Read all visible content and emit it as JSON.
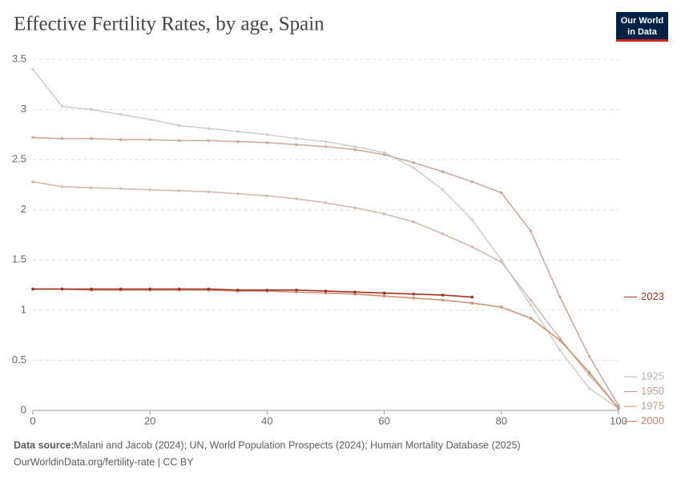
{
  "logo": [
    "Our World",
    "in Data"
  ],
  "chart_data": {
    "type": "line",
    "title": "Effective Fertility Rates, by age, Spain",
    "source_label": "Data source:",
    "source": "Malani and Jacob (2024); UN, World Population Prospects (2024); Human Mortality Database (2025)",
    "footer": "OurWorldinData.org/fertility-rate | CC BY",
    "x": [
      0,
      5,
      10,
      15,
      20,
      25,
      30,
      35,
      40,
      45,
      50,
      55,
      60,
      65,
      70,
      75,
      80,
      85,
      90,
      95,
      100
    ],
    "xlim": [
      0,
      100
    ],
    "xticks": [
      0,
      20,
      40,
      60,
      80,
      100
    ],
    "ylim": [
      0,
      3.5
    ],
    "yticks": [
      0,
      0.5,
      1,
      1.5,
      2,
      2.5,
      3,
      3.5
    ],
    "grid": true,
    "markers": true,
    "series": [
      {
        "name": "1925",
        "color": "#cfcfcf",
        "label_color": "#b3b3b3",
        "values": [
          3.4,
          3.03,
          3.0,
          2.95,
          2.9,
          2.84,
          2.81,
          2.78,
          2.75,
          2.71,
          2.68,
          2.63,
          2.57,
          2.42,
          2.2,
          1.9,
          1.5,
          1.05,
          0.6,
          0.22,
          0.02
        ]
      },
      {
        "name": "1950",
        "color": "#d2bbb3",
        "label_color": "#bf9f94",
        "values": [
          2.28,
          2.23,
          2.22,
          2.21,
          2.2,
          2.19,
          2.18,
          2.16,
          2.14,
          2.11,
          2.07,
          2.02,
          1.96,
          1.88,
          1.76,
          1.63,
          1.48,
          1.1,
          0.72,
          0.35,
          0.03
        ]
      },
      {
        "name": "1975",
        "color": "#cba99e",
        "label_color": "#c39c8f",
        "values": [
          2.72,
          2.71,
          2.71,
          2.7,
          2.7,
          2.69,
          2.69,
          2.68,
          2.67,
          2.65,
          2.63,
          2.6,
          2.55,
          2.47,
          2.38,
          2.28,
          2.17,
          1.79,
          1.13,
          0.54,
          0.05
        ]
      },
      {
        "name": "2000",
        "color": "#cc9378",
        "label_color": "#c4866a",
        "values": [
          1.21,
          1.21,
          1.2,
          1.2,
          1.2,
          1.2,
          1.2,
          1.19,
          1.19,
          1.18,
          1.17,
          1.16,
          1.14,
          1.12,
          1.1,
          1.07,
          1.03,
          0.92,
          0.7,
          0.38,
          0.02
        ]
      },
      {
        "name": "2023",
        "color": "#a2321f",
        "label_color": "#a2321f",
        "values": [
          1.21,
          1.21,
          1.21,
          1.21,
          1.21,
          1.21,
          1.21,
          1.2,
          1.2,
          1.2,
          1.19,
          1.18,
          1.17,
          1.16,
          1.15,
          1.13,
          null,
          null,
          null,
          null,
          null
        ]
      }
    ]
  }
}
